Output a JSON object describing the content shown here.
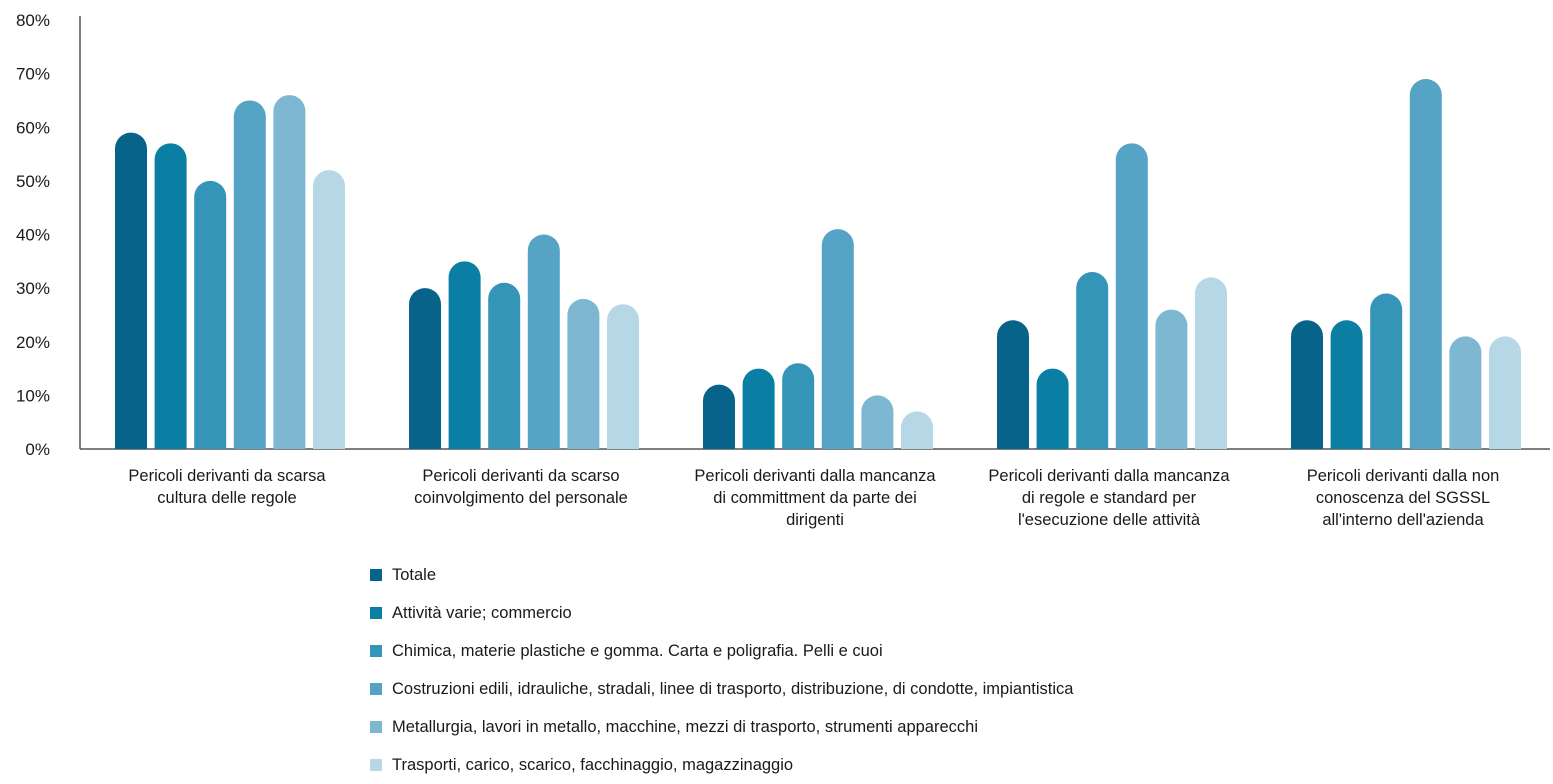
{
  "chart_data": {
    "type": "bar",
    "categories": [
      [
        "Pericoli derivanti da scarsa",
        "cultura delle regole"
      ],
      [
        "Pericoli derivanti da scarso",
        "coinvolgimento del personale"
      ],
      [
        "Pericoli derivanti dalla mancanza",
        "di committment da parte dei",
        "dirigenti"
      ],
      [
        "Pericoli derivanti dalla mancanza",
        "di regole e standard per",
        "l'esecuzione delle attività"
      ],
      [
        "Pericoli derivanti dalla non",
        "conoscenza del SGSSL",
        "all'interno dell'azienda"
      ]
    ],
    "series": [
      {
        "name": "Totale",
        "color": "#07638a",
        "values": [
          59,
          30,
          12,
          24,
          24
        ]
      },
      {
        "name": "Attività varie; commercio",
        "color": "#0a7ea3",
        "values": [
          57,
          35,
          15,
          15,
          24
        ]
      },
      {
        "name": "Chimica, materie plastiche e gomma. Carta e poligrafia. Pelli e cuoi",
        "color": "#3495b8",
        "values": [
          50,
          31,
          16,
          33,
          29
        ]
      },
      {
        "name": "Costruzioni edili, idrauliche, stradali, linee di trasporto, distribuzione, di condotte, impiantistica",
        "color": "#55a4c5",
        "values": [
          65,
          40,
          41,
          57,
          69
        ]
      },
      {
        "name": "Metallurgia, lavori in metallo, macchine, mezzi di trasporto, strumenti apparecchi",
        "color": "#7eb7d2",
        "values": [
          66,
          28,
          10,
          26,
          21
        ]
      },
      {
        "name": "Trasporti, carico, scarico, facchinaggio, magazzinaggio",
        "color": "#b6d7e6",
        "values": [
          52,
          27,
          7,
          32,
          21
        ]
      }
    ],
    "yticks": [
      "0%",
      "10%",
      "20%",
      "30%",
      "40%",
      "50%",
      "60%",
      "70%",
      "80%"
    ],
    "ylim": [
      0,
      80
    ],
    "grid": false,
    "legend": "bottom"
  }
}
